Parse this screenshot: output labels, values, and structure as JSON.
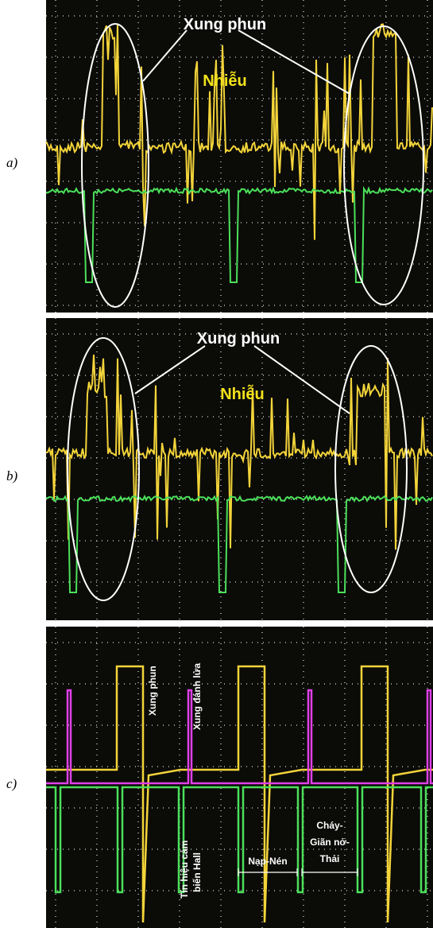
{
  "panels": [
    {
      "label": "a)",
      "annotations": {
        "pulse": "Xung phun",
        "noise": "Nhiễu"
      }
    },
    {
      "label": "b)",
      "annotations": {
        "pulse": "Xung phun",
        "noise": "Nhiễu"
      }
    },
    {
      "label": "c)",
      "annotations": {
        "pulse": "Xung phun",
        "ignition": "Xung đánh lửa",
        "hall": [
          "Tín hiệu cảm",
          "biến Hall"
        ],
        "intake": "Nạp-Nén",
        "power": [
          "Cháy-",
          "Giãn nở-",
          "Thải"
        ]
      }
    }
  ]
}
